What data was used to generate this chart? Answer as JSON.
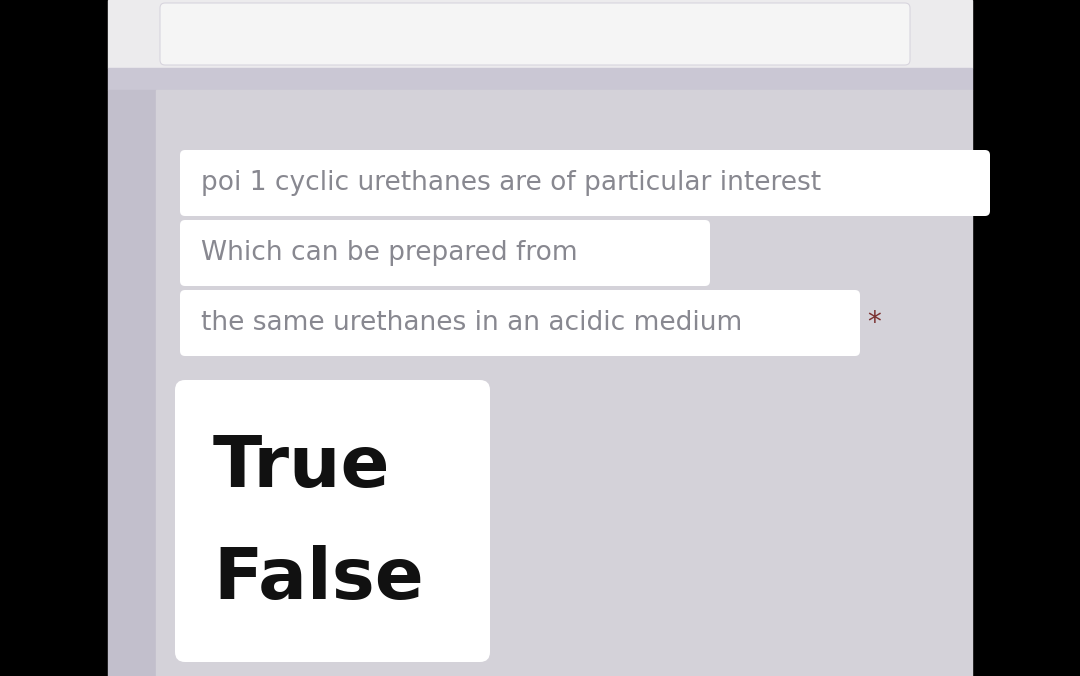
{
  "bg_outer": "#000000",
  "bg_top_section": "#e8e7ec",
  "bg_separator": "#d0cdd8",
  "bg_main": "#d4d2d9",
  "bg_left_bar": "#c8c5d0",
  "text_color_gray": "#888890",
  "text_color_dark": "#111111",
  "white_box_color": "#ffffff",
  "line1": "poi 1 cyclic urethanes are of particular interest",
  "line2": "Which can be prepared from",
  "line3": "the same urethanes in an acidic medium",
  "answer_true": "True",
  "answer_false": "False",
  "asterisk": "*",
  "fig_width": 10.8,
  "fig_height": 6.76,
  "dpi": 100
}
